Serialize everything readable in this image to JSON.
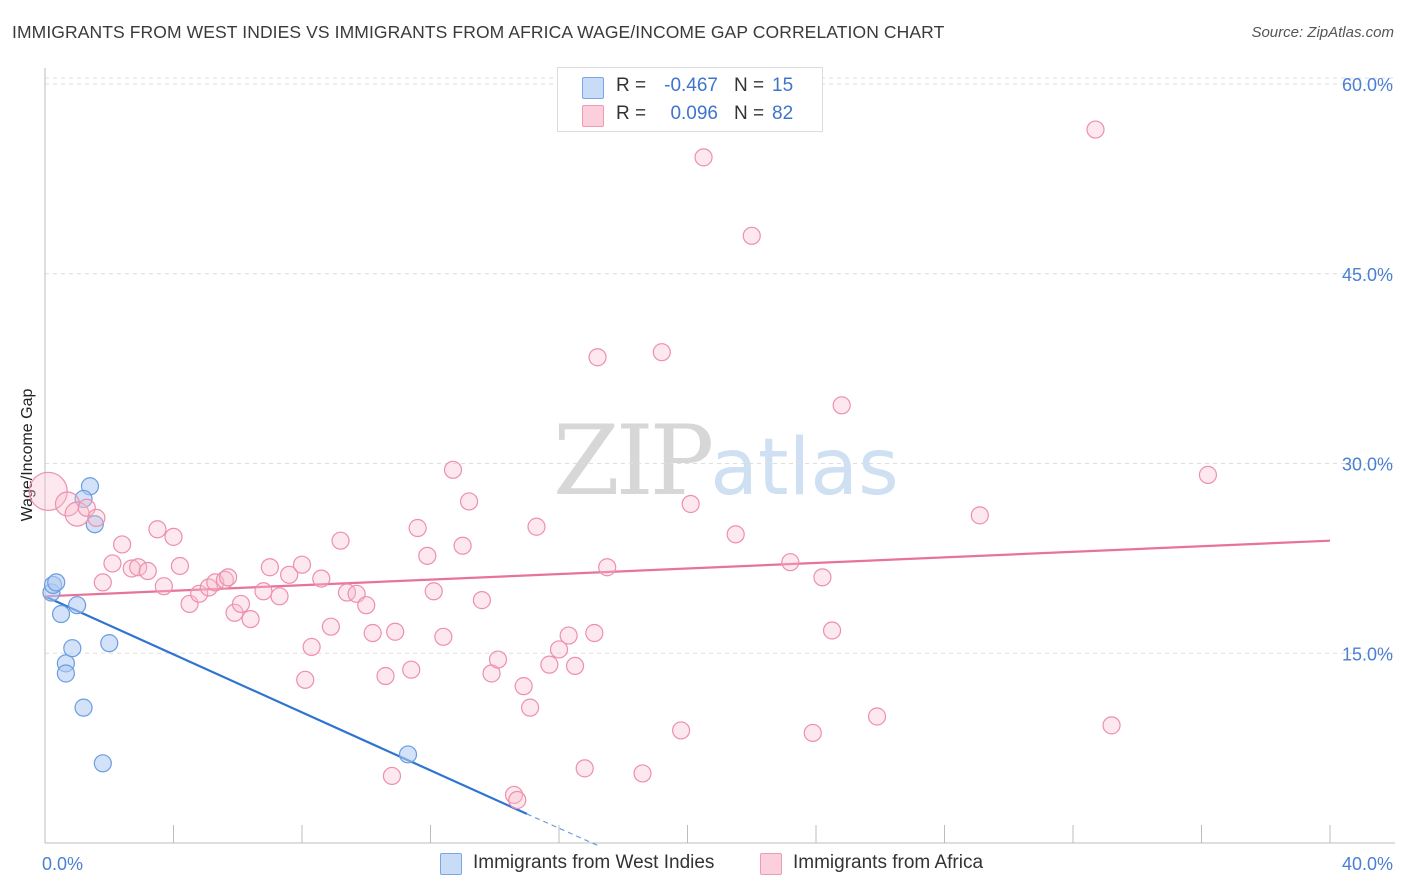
{
  "title": "IMMIGRANTS FROM WEST INDIES VS IMMIGRANTS FROM AFRICA WAGE/INCOME GAP CORRELATION CHART",
  "source": "Source: ZipAtlas.com",
  "watermark": {
    "zip": "ZIP",
    "atlas": "atlas"
  },
  "legend": {
    "rows": [
      {
        "r_label": "R =",
        "r_value": "-0.467",
        "n_label": "N =",
        "n_value": "15",
        "color": "#aecbf2"
      },
      {
        "r_label": "R =",
        "r_value": "0.096",
        "n_label": "N =",
        "n_value": "82",
        "color": "#f7bccd"
      }
    ]
  },
  "bottom_legend": [
    {
      "label": "Immigrants from West Indies",
      "color": "#aecbf2"
    },
    {
      "label": "Immigrants from Africa",
      "color": "#f7bccd"
    }
  ],
  "chart_data": {
    "type": "scatter",
    "title": "IMMIGRANTS FROM WEST INDIES VS IMMIGRANTS FROM AFRICA WAGE/INCOME GAP CORRELATION CHART",
    "xlabel": "",
    "ylabel": "Wage/Income Gap",
    "xlim": [
      0,
      40
    ],
    "ylim": [
      0,
      60
    ],
    "x_tick_labels": [
      {
        "value": 0,
        "label": "0.0%"
      },
      {
        "value": 40,
        "label": "40.0%"
      }
    ],
    "y_tick_labels": [
      {
        "value": 15,
        "label": "15.0%"
      },
      {
        "value": 30,
        "label": "30.0%"
      },
      {
        "value": 45,
        "label": "45.0%"
      },
      {
        "value": 60,
        "label": "60.0%"
      }
    ],
    "grid": true,
    "legend_position": "top-center",
    "series": [
      {
        "name": "Immigrants from West Indies",
        "color": "#aecbf2",
        "stroke": "#6a9de0",
        "points": [
          {
            "x": 0.2,
            "y": 19.8
          },
          {
            "x": 0.25,
            "y": 20.4
          },
          {
            "x": 0.35,
            "y": 20.6
          },
          {
            "x": 0.5,
            "y": 18.1
          },
          {
            "x": 0.65,
            "y": 14.2
          },
          {
            "x": 0.65,
            "y": 13.4
          },
          {
            "x": 0.85,
            "y": 15.4
          },
          {
            "x": 1.0,
            "y": 18.8
          },
          {
            "x": 1.2,
            "y": 10.7
          },
          {
            "x": 1.4,
            "y": 28.2
          },
          {
            "x": 1.55,
            "y": 25.2
          },
          {
            "x": 1.8,
            "y": 6.3
          },
          {
            "x": 2.0,
            "y": 15.8
          },
          {
            "x": 11.3,
            "y": 7.0
          },
          {
            "x": 1.2,
            "y": 27.2
          }
        ],
        "trend": {
          "x0": 0,
          "y0": 19.5,
          "x1": 15,
          "y1": 2.3,
          "dash_to_x": 17.3,
          "dash_to_y": -0.3,
          "color": "#2f74d0"
        }
      },
      {
        "name": "Immigrants from Africa",
        "color": "#f7bccd",
        "stroke": "#ee8fac",
        "points": [
          {
            "x": 0.1,
            "y": 27.8
          },
          {
            "x": 0.7,
            "y": 26.8
          },
          {
            "x": 1.0,
            "y": 26.0
          },
          {
            "x": 1.3,
            "y": 26.5
          },
          {
            "x": 1.6,
            "y": 25.7
          },
          {
            "x": 1.8,
            "y": 20.6
          },
          {
            "x": 2.1,
            "y": 22.1
          },
          {
            "x": 2.4,
            "y": 23.6
          },
          {
            "x": 2.7,
            "y": 21.7
          },
          {
            "x": 2.9,
            "y": 21.8
          },
          {
            "x": 3.2,
            "y": 21.5
          },
          {
            "x": 3.5,
            "y": 24.8
          },
          {
            "x": 3.7,
            "y": 20.3
          },
          {
            "x": 4.0,
            "y": 24.2
          },
          {
            "x": 4.2,
            "y": 21.9
          },
          {
            "x": 4.5,
            "y": 18.9
          },
          {
            "x": 4.8,
            "y": 19.7
          },
          {
            "x": 5.1,
            "y": 20.2
          },
          {
            "x": 5.3,
            "y": 20.6
          },
          {
            "x": 5.6,
            "y": 20.8
          },
          {
            "x": 5.9,
            "y": 18.2
          },
          {
            "x": 6.1,
            "y": 18.9
          },
          {
            "x": 6.4,
            "y": 17.7
          },
          {
            "x": 6.8,
            "y": 19.9
          },
          {
            "x": 7.0,
            "y": 21.8
          },
          {
            "x": 7.3,
            "y": 19.5
          },
          {
            "x": 7.6,
            "y": 21.2
          },
          {
            "x": 8.0,
            "y": 22.0
          },
          {
            "x": 8.3,
            "y": 15.5
          },
          {
            "x": 8.6,
            "y": 20.9
          },
          {
            "x": 8.9,
            "y": 17.1
          },
          {
            "x": 9.2,
            "y": 23.9
          },
          {
            "x": 9.4,
            "y": 19.8
          },
          {
            "x": 9.7,
            "y": 19.7
          },
          {
            "x": 10.0,
            "y": 18.8
          },
          {
            "x": 10.2,
            "y": 16.6
          },
          {
            "x": 10.6,
            "y": 13.2
          },
          {
            "x": 10.9,
            "y": 16.7
          },
          {
            "x": 11.4,
            "y": 13.7
          },
          {
            "x": 11.6,
            "y": 24.9
          },
          {
            "x": 11.9,
            "y": 22.7
          },
          {
            "x": 12.1,
            "y": 19.9
          },
          {
            "x": 12.4,
            "y": 16.3
          },
          {
            "x": 12.7,
            "y": 29.5
          },
          {
            "x": 13.0,
            "y": 23.5
          },
          {
            "x": 13.2,
            "y": 27.0
          },
          {
            "x": 13.6,
            "y": 19.2
          },
          {
            "x": 13.9,
            "y": 13.4
          },
          {
            "x": 14.1,
            "y": 14.5
          },
          {
            "x": 14.6,
            "y": 3.8
          },
          {
            "x": 14.9,
            "y": 12.4
          },
          {
            "x": 15.1,
            "y": 10.7
          },
          {
            "x": 15.3,
            "y": 25.0
          },
          {
            "x": 15.7,
            "y": 14.1
          },
          {
            "x": 16.0,
            "y": 15.3
          },
          {
            "x": 16.3,
            "y": 16.4
          },
          {
            "x": 16.5,
            "y": 14.0
          },
          {
            "x": 16.8,
            "y": 5.9
          },
          {
            "x": 17.1,
            "y": 16.6
          },
          {
            "x": 17.5,
            "y": 21.8
          },
          {
            "x": 17.2,
            "y": 38.4
          },
          {
            "x": 19.2,
            "y": 38.8
          },
          {
            "x": 18.6,
            "y": 5.5
          },
          {
            "x": 19.8,
            "y": 8.9
          },
          {
            "x": 20.1,
            "y": 26.8
          },
          {
            "x": 20.5,
            "y": 54.2
          },
          {
            "x": 21.5,
            "y": 24.4
          },
          {
            "x": 22.0,
            "y": 48.0
          },
          {
            "x": 23.2,
            "y": 22.2
          },
          {
            "x": 23.9,
            "y": 8.7
          },
          {
            "x": 24.2,
            "y": 21.0
          },
          {
            "x": 24.5,
            "y": 16.8
          },
          {
            "x": 24.8,
            "y": 34.6
          },
          {
            "x": 25.9,
            "y": 10.0
          },
          {
            "x": 29.1,
            "y": 25.9
          },
          {
            "x": 32.7,
            "y": 56.4
          },
          {
            "x": 33.2,
            "y": 9.3
          },
          {
            "x": 36.2,
            "y": 29.1
          },
          {
            "x": 10.8,
            "y": 5.3
          },
          {
            "x": 14.7,
            "y": 3.4
          },
          {
            "x": 5.7,
            "y": 21.0
          },
          {
            "x": 8.1,
            "y": 12.9
          }
        ],
        "trend": {
          "x0": 0,
          "y0": 19.5,
          "x1": 40,
          "y1": 23.9,
          "color": "#e8739a"
        }
      }
    ]
  }
}
